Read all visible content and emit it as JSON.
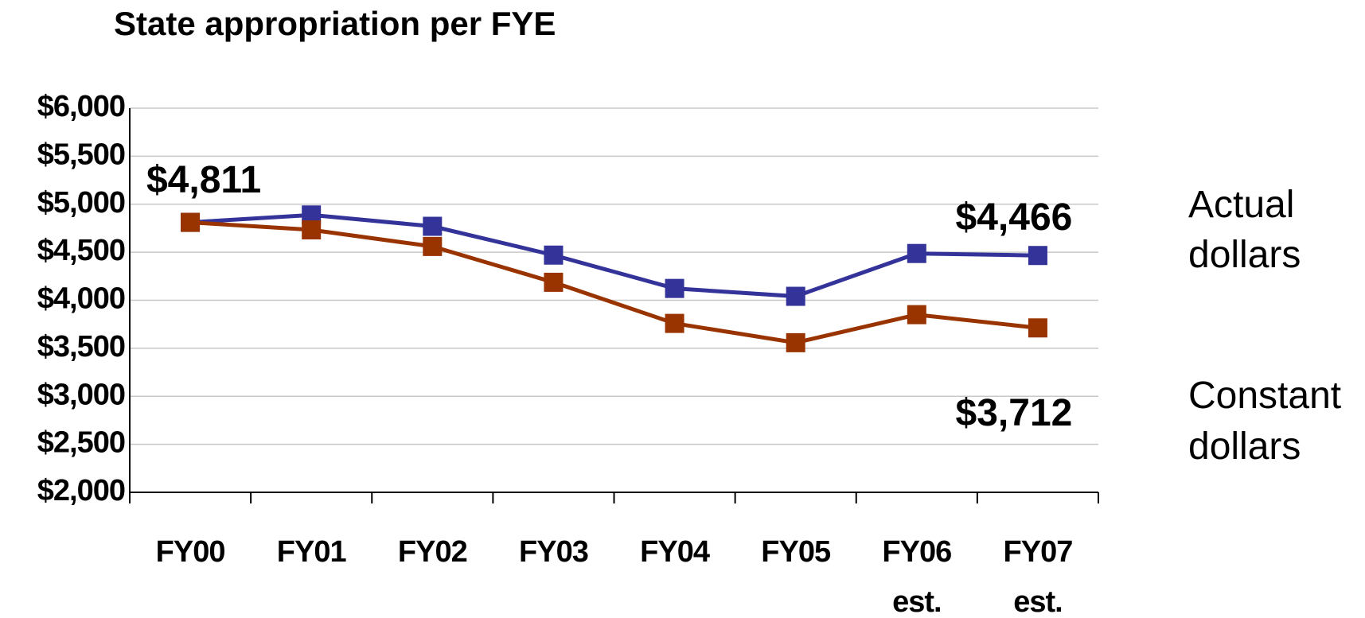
{
  "chart_data": {
    "type": "line",
    "title": "State appropriation per FYE",
    "categories": [
      "FY00",
      "FY01",
      "FY02",
      "FY03",
      "FY04",
      "FY05",
      "FY06 est.",
      "FY07 est."
    ],
    "series": [
      {
        "name": "Actual dollars",
        "color": "#333399",
        "values": [
          4811,
          4888,
          4770,
          4470,
          4123,
          4041,
          4487,
          4466
        ],
        "value_labels": [
          "$4,811",
          null,
          null,
          null,
          null,
          null,
          null,
          "$4,466"
        ]
      },
      {
        "name": "Constant dollars",
        "color": "#993300",
        "values": [
          4811,
          4733,
          4560,
          4187,
          3759,
          3558,
          3850,
          3712
        ],
        "value_labels": [
          null,
          null,
          null,
          null,
          null,
          null,
          null,
          "$3,712"
        ]
      }
    ],
    "ylim": [
      2000,
      6000
    ],
    "yticks": [
      {
        "value": 2000,
        "label": "$2,000"
      },
      {
        "value": 2500,
        "label": "$2,500"
      },
      {
        "value": 3000,
        "label": "$3,000"
      },
      {
        "value": 3500,
        "label": "$3,500"
      },
      {
        "value": 4000,
        "label": "$4,000"
      },
      {
        "value": 4500,
        "label": "$4,500"
      },
      {
        "value": 5000,
        "label": "$5,000"
      },
      {
        "value": 5500,
        "label": "$5,500"
      },
      {
        "value": 6000,
        "label": "$6,000"
      }
    ],
    "grid": true
  }
}
